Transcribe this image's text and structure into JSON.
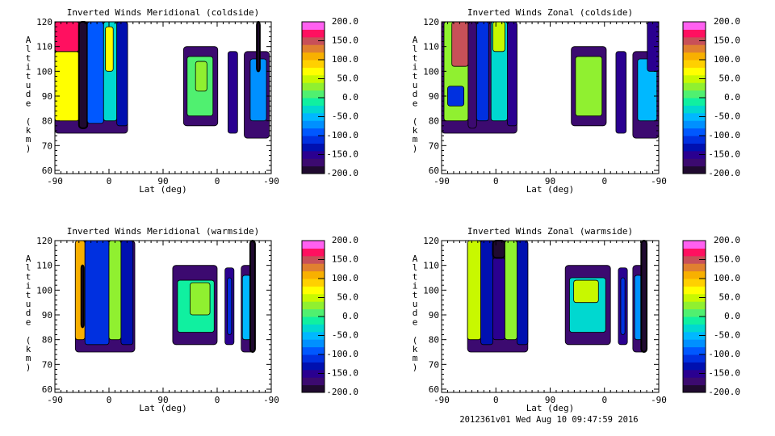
{
  "footer": "2012361v01 Wed Aug 10 09:47:59 2016",
  "colorbar": {
    "levels_min": -200,
    "levels_max": 200,
    "band_step": 20,
    "labels": [
      "200.0",
      "150.0",
      "100.0",
      "50.0",
      "0.0",
      "-50.0",
      "-100.0",
      "-150.0",
      "-200.0"
    ],
    "colors": [
      "#200a30",
      "#3c0a70",
      "#2a0090",
      "#0010b0",
      "#0030e0",
      "#0058ff",
      "#0090ff",
      "#00b8ff",
      "#00d8d0",
      "#10f0a0",
      "#50f070",
      "#90f030",
      "#c8f800",
      "#ffff00",
      "#ffd000",
      "#f8b000",
      "#e08030",
      "#c85058",
      "#ff1060",
      "#ff60f0"
    ]
  },
  "chart_data": [
    {
      "type": "heatmap",
      "title": "Inverted Winds Meridional (coldside)",
      "xlabel": "Lat (deg)",
      "ylabel": "Altitude (km)",
      "xticks": [
        "-90",
        "0",
        "90",
        "0",
        "-90"
      ],
      "yticks": [
        "60",
        "70",
        "80",
        "90",
        "100",
        "110",
        "120"
      ],
      "ylim": [
        60,
        120
      ],
      "track_range": [
        0,
        360
      ],
      "regions": [
        {
          "t": [
            0,
            121
          ],
          "alt": [
            75,
            120
          ],
          "v": -170
        },
        {
          "t": [
            0,
            40
          ],
          "alt": [
            80,
            108
          ],
          "v": 60
        },
        {
          "t": [
            0,
            40
          ],
          "alt": [
            108,
            120
          ],
          "v": 170
        },
        {
          "t": [
            40,
            54
          ],
          "alt": [
            77,
            120
          ],
          "v": -190
        },
        {
          "t": [
            54,
            81
          ],
          "alt": [
            79,
            120
          ],
          "v": -90
        },
        {
          "t": [
            81,
            103
          ],
          "alt": [
            80,
            120
          ],
          "v": -40
        },
        {
          "t": [
            84,
            97
          ],
          "alt": [
            100,
            118
          ],
          "v": 60
        },
        {
          "t": [
            103,
            121
          ],
          "alt": [
            78,
            120
          ],
          "v": -130
        },
        {
          "t": [
            214,
            271
          ],
          "alt": [
            78,
            110
          ],
          "v": -170
        },
        {
          "t": [
            220,
            263
          ],
          "alt": [
            82,
            106
          ],
          "v": 0
        },
        {
          "t": [
            234,
            253
          ],
          "alt": [
            92,
            104
          ],
          "v": 30
        },
        {
          "t": [
            288,
            304
          ],
          "alt": [
            75,
            108
          ],
          "v": -150
        },
        {
          "t": [
            315,
            357
          ],
          "alt": [
            73,
            108
          ],
          "v": -170
        },
        {
          "t": [
            325,
            352
          ],
          "alt": [
            80,
            105
          ],
          "v": -80
        },
        {
          "t": [
            336,
            341
          ],
          "alt": [
            100,
            120
          ],
          "v": -190
        }
      ]
    },
    {
      "type": "heatmap",
      "title": "Inverted Winds Zonal (coldside)",
      "xlabel": "Lat (deg)",
      "ylabel": "Altitude (km)",
      "xticks": [
        "-90",
        "0",
        "90",
        "0",
        "-90"
      ],
      "yticks": [
        "60",
        "70",
        "80",
        "90",
        "100",
        "110",
        "120"
      ],
      "ylim": [
        60,
        120
      ],
      "track_range": [
        0,
        360
      ],
      "regions": [
        {
          "t": [
            0,
            125
          ],
          "alt": [
            75,
            120
          ],
          "v": -170
        },
        {
          "t": [
            4,
            44
          ],
          "alt": [
            80,
            120
          ],
          "v": 20
        },
        {
          "t": [
            17,
            44
          ],
          "alt": [
            102,
            120
          ],
          "v": 150
        },
        {
          "t": [
            10,
            37
          ],
          "alt": [
            86,
            94
          ],
          "v": -110
        },
        {
          "t": [
            44,
            58
          ],
          "alt": [
            77,
            120
          ],
          "v": -180
        },
        {
          "t": [
            58,
            78
          ],
          "alt": [
            80,
            120
          ],
          "v": -110
        },
        {
          "t": [
            82,
            109
          ],
          "alt": [
            80,
            120
          ],
          "v": -40
        },
        {
          "t": [
            85,
            105
          ],
          "alt": [
            108,
            120
          ],
          "v": 50
        },
        {
          "t": [
            109,
            125
          ],
          "alt": [
            78,
            120
          ],
          "v": -150
        },
        {
          "t": [
            215,
            273
          ],
          "alt": [
            78,
            110
          ],
          "v": -170
        },
        {
          "t": [
            222,
            266
          ],
          "alt": [
            82,
            106
          ],
          "v": 20
        },
        {
          "t": [
            289,
            306
          ],
          "alt": [
            75,
            108
          ],
          "v": -160
        },
        {
          "t": [
            317,
            360
          ],
          "alt": [
            73,
            108
          ],
          "v": -170
        },
        {
          "t": [
            325,
            357
          ],
          "alt": [
            80,
            105
          ],
          "v": -60
        },
        {
          "t": [
            341,
            360
          ],
          "alt": [
            100,
            120
          ],
          "v": -160
        }
      ]
    },
    {
      "type": "heatmap",
      "title": "Inverted Winds Meridional (warmside)",
      "xlabel": "Lat (deg)",
      "ylabel": "Altitude (km)",
      "xticks": [
        "-90",
        "0",
        "90",
        "0",
        "-90"
      ],
      "yticks": [
        "60",
        "70",
        "80",
        "90",
        "100",
        "110",
        "120"
      ],
      "ylim": [
        60,
        120
      ],
      "track_range": [
        0,
        360
      ],
      "regions": [
        {
          "t": [
            34,
            133
          ],
          "alt": [
            75,
            120
          ],
          "v": -170
        },
        {
          "t": [
            34,
            50
          ],
          "alt": [
            80,
            120
          ],
          "v": 110
        },
        {
          "t": [
            44,
            48
          ],
          "alt": [
            85,
            110
          ],
          "v": -190
        },
        {
          "t": [
            50,
            90
          ],
          "alt": [
            78,
            120
          ],
          "v": -120
        },
        {
          "t": [
            90,
            110
          ],
          "alt": [
            80,
            120
          ],
          "v": 20
        },
        {
          "t": [
            110,
            130
          ],
          "alt": [
            78,
            120
          ],
          "v": -140
        },
        {
          "t": [
            196,
            270
          ],
          "alt": [
            78,
            110
          ],
          "v": -170
        },
        {
          "t": [
            204,
            265
          ],
          "alt": [
            83,
            104
          ],
          "v": -20
        },
        {
          "t": [
            225,
            258
          ],
          "alt": [
            90,
            103
          ],
          "v": 30
        },
        {
          "t": [
            283,
            298
          ],
          "alt": [
            78,
            109
          ],
          "v": -150
        },
        {
          "t": [
            287,
            294
          ],
          "alt": [
            82,
            105
          ],
          "v": -110
        },
        {
          "t": [
            310,
            333
          ],
          "alt": [
            75,
            110
          ],
          "v": -170
        },
        {
          "t": [
            312,
            326
          ],
          "alt": [
            80,
            106
          ],
          "v": -60
        },
        {
          "t": [
            325,
            333
          ],
          "alt": [
            75,
            120
          ],
          "v": -195
        }
      ]
    },
    {
      "type": "heatmap",
      "title": "Inverted Winds Zonal (warmside)",
      "xlabel": "Lat (deg)",
      "ylabel": "Altitude (km)",
      "xticks": [
        "-90",
        "0",
        "90",
        "0",
        "-90"
      ],
      "yticks": [
        "60",
        "70",
        "80",
        "90",
        "100",
        "110",
        "120"
      ],
      "ylim": [
        60,
        120
      ],
      "track_range": [
        0,
        360
      ],
      "regions": [
        {
          "t": [
            43,
            143
          ],
          "alt": [
            75,
            120
          ],
          "v": -170
        },
        {
          "t": [
            43,
            65
          ],
          "alt": [
            80,
            120
          ],
          "v": 40
        },
        {
          "t": [
            65,
            85
          ],
          "alt": [
            78,
            120
          ],
          "v": -130
        },
        {
          "t": [
            85,
            105
          ],
          "alt": [
            80,
            113
          ],
          "v": -150
        },
        {
          "t": [
            85,
            105
          ],
          "alt": [
            113,
            120
          ],
          "v": -190
        },
        {
          "t": [
            105,
            125
          ],
          "alt": [
            80,
            120
          ],
          "v": 20
        },
        {
          "t": [
            125,
            143
          ],
          "alt": [
            78,
            120
          ],
          "v": -130
        },
        {
          "t": [
            205,
            280
          ],
          "alt": [
            78,
            110
          ],
          "v": -170
        },
        {
          "t": [
            212,
            272
          ],
          "alt": [
            83,
            105
          ],
          "v": -40
        },
        {
          "t": [
            219,
            260
          ],
          "alt": [
            95,
            104
          ],
          "v": 40
        },
        {
          "t": [
            293,
            308
          ],
          "alt": [
            78,
            109
          ],
          "v": -150
        },
        {
          "t": [
            297,
            304
          ],
          "alt": [
            82,
            105
          ],
          "v": -110
        },
        {
          "t": [
            317,
            340
          ],
          "alt": [
            75,
            110
          ],
          "v": -170
        },
        {
          "t": [
            320,
            332
          ],
          "alt": [
            80,
            106
          ],
          "v": -70
        },
        {
          "t": [
            331,
            340
          ],
          "alt": [
            75,
            120
          ],
          "v": -195
        }
      ]
    }
  ]
}
